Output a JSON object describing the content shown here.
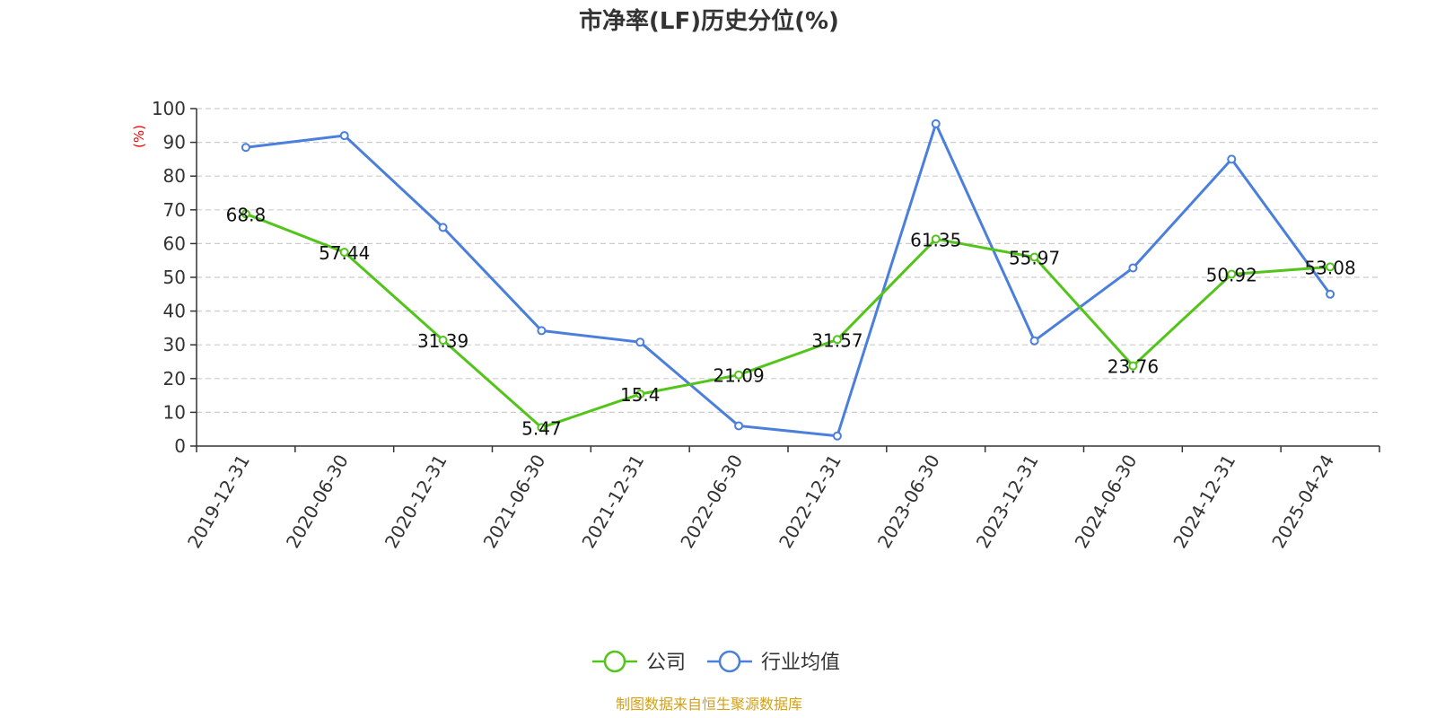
{
  "chart_data": {
    "type": "line",
    "title": "市净率(LF)历史分位(%)",
    "ylabel": "(%)",
    "ylim": [
      0,
      100
    ],
    "yticks": [
      0,
      10,
      20,
      30,
      40,
      50,
      60,
      70,
      80,
      90,
      100
    ],
    "categories": [
      "2019-12-31",
      "2020-06-30",
      "2020-12-31",
      "2021-06-30",
      "2021-12-31",
      "2022-06-30",
      "2022-12-31",
      "2023-06-30",
      "2023-12-31",
      "2024-06-30",
      "2024-12-31",
      "2025-04-24"
    ],
    "series": [
      {
        "name": "公司",
        "color": "#52c41a",
        "values": [
          68.8,
          57.44,
          31.39,
          5.47,
          15.4,
          21.09,
          31.57,
          61.35,
          55.97,
          23.76,
          50.92,
          53.08
        ],
        "labels": [
          "68.8",
          "57.44",
          "31.39",
          "5.47",
          "15.4",
          "21.09",
          "31.57",
          "61.35",
          "55.97",
          "23.76",
          "50.92",
          "53.08"
        ]
      },
      {
        "name": "行业均值",
        "color": "#4b7fdc",
        "values": [
          88.5,
          92,
          64.8,
          34.2,
          30.8,
          6,
          3,
          95.5,
          31.2,
          52.8,
          85,
          45
        ]
      }
    ],
    "grid": "horizontal-dashed",
    "legend": "bottom-center",
    "unit_color": "#ff0000"
  },
  "source": {
    "text": "制图数据来自恒生聚源数据库",
    "color": "#d4a017"
  }
}
